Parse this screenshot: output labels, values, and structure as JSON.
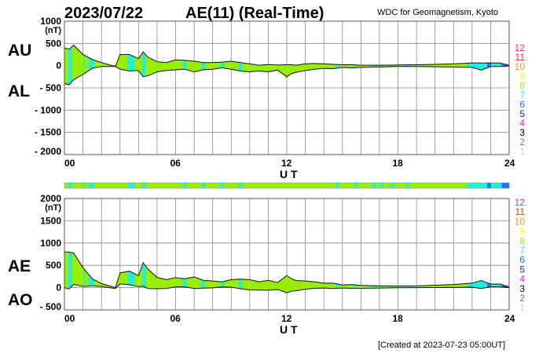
{
  "header": {
    "date": "2023/07/22",
    "title": "AE(11) (Real-Time)",
    "source": "WDC for Geomagnetism, Kyoto"
  },
  "footer": {
    "created": "[Created at 2023-07-23 05:00UT]"
  },
  "station_colors": {
    "12": "#ff2288",
    "11": "#ff2a1a",
    "10": "#ff9900",
    "9": "#ffee00",
    "8": "#99ee00",
    "7": "#22eedd",
    "6": "#1177ff",
    "5": "#2222ee",
    "4": "#ee11ee",
    "3": "#000000",
    "2": "#777777",
    "1": "#cccccc"
  },
  "legend_labels": [
    "12",
    "11",
    "10",
    "9",
    "8",
    "7",
    "6",
    "5",
    "4",
    "3",
    "2",
    "1"
  ],
  "chart_data": [
    {
      "type": "area",
      "name": "AU/AL",
      "upper_label": "AU",
      "lower_label": "AL",
      "unit_label": "(nT)",
      "xlabel": "U T",
      "xlim": [
        0,
        24
      ],
      "xticks": [
        "00",
        "06",
        "12",
        "18",
        "24"
      ],
      "ylim": [
        -2000,
        1000
      ],
      "yticks": [
        "1000",
        "500",
        "0",
        "- 500",
        "- 1000",
        "- 1500",
        "- 2000"
      ],
      "grid": true
    },
    {
      "type": "area",
      "name": "AE/AO",
      "upper_label": "AE",
      "lower_label": "AO",
      "unit_label": "(nT)",
      "xlabel": "U T",
      "xlim": [
        0,
        24
      ],
      "xticks": [
        "00",
        "06",
        "12",
        "18",
        "24"
      ],
      "ylim": [
        -500,
        2000
      ],
      "yticks": [
        "2000",
        "1500",
        "1000",
        "500",
        "0",
        "- 500"
      ],
      "grid": true
    }
  ],
  "series": {
    "t_hours": [
      0,
      0.25,
      0.5,
      1,
      1.5,
      2,
      2.5,
      2.75,
      3,
      3.5,
      4,
      4.25,
      4.5,
      5,
      5.5,
      6,
      6.5,
      7,
      7.5,
      8,
      8.5,
      9,
      9.5,
      10,
      10.5,
      11,
      11.5,
      12,
      12.25,
      12.5,
      13,
      13.5,
      14,
      14.5,
      15,
      15.5,
      16,
      17,
      18,
      19,
      20,
      21,
      22,
      22.5,
      23,
      23.5,
      24
    ],
    "AU": [
      400,
      370,
      460,
      250,
      140,
      70,
      10,
      -20,
      250,
      250,
      160,
      310,
      190,
      90,
      70,
      130,
      120,
      100,
      70,
      70,
      80,
      100,
      70,
      40,
      10,
      25,
      15,
      20,
      20,
      10,
      40,
      50,
      40,
      30,
      20,
      20,
      10,
      10,
      15,
      20,
      30,
      40,
      60,
      60,
      60,
      60,
      10
    ],
    "AL": [
      -400,
      -430,
      -315,
      -200,
      -60,
      -20,
      -20,
      -20,
      -80,
      -120,
      -110,
      -250,
      -230,
      -140,
      -110,
      -95,
      -80,
      -140,
      -95,
      -80,
      -50,
      -80,
      -120,
      -140,
      -120,
      -140,
      -100,
      -250,
      -180,
      -150,
      -110,
      -80,
      -60,
      -70,
      -40,
      -50,
      -40,
      -30,
      -20,
      -20,
      -25,
      -30,
      -40,
      -100,
      -20,
      -20,
      -10
    ]
  },
  "station_count_segments": [
    [
      0,
      0.2,
      8
    ],
    [
      0.2,
      0.41,
      7
    ],
    [
      0.41,
      1.05,
      8
    ],
    [
      1.05,
      1.11,
      7
    ],
    [
      1.11,
      1.31,
      8
    ],
    [
      1.31,
      1.61,
      7
    ],
    [
      1.61,
      3.42,
      8
    ],
    [
      3.42,
      3.8,
      7
    ],
    [
      3.8,
      4.2,
      8
    ],
    [
      4.2,
      4.4,
      7
    ],
    [
      4.4,
      6.4,
      8
    ],
    [
      6.4,
      6.6,
      7
    ],
    [
      6.6,
      7.4,
      8
    ],
    [
      7.4,
      7.6,
      7
    ],
    [
      7.6,
      8.43,
      8
    ],
    [
      8.43,
      8.63,
      7
    ],
    [
      8.63,
      9.4,
      8
    ],
    [
      9.4,
      9.6,
      7
    ],
    [
      9.6,
      14.63,
      8
    ],
    [
      14.63,
      14.82,
      7
    ],
    [
      14.82,
      15.64,
      8
    ],
    [
      15.64,
      15.82,
      7
    ],
    [
      15.82,
      16.6,
      8
    ],
    [
      16.6,
      16.83,
      7
    ],
    [
      16.83,
      17.03,
      8
    ],
    [
      17.03,
      17.22,
      7
    ],
    [
      17.22,
      17.63,
      8
    ],
    [
      17.63,
      17.84,
      7
    ],
    [
      17.84,
      18.45,
      8
    ],
    [
      18.45,
      18.63,
      7
    ],
    [
      18.63,
      21.74,
      8
    ],
    [
      21.74,
      22.82,
      7
    ],
    [
      22.82,
      23.02,
      6
    ],
    [
      23.02,
      23.6,
      7
    ],
    [
      23.6,
      24,
      6
    ]
  ]
}
